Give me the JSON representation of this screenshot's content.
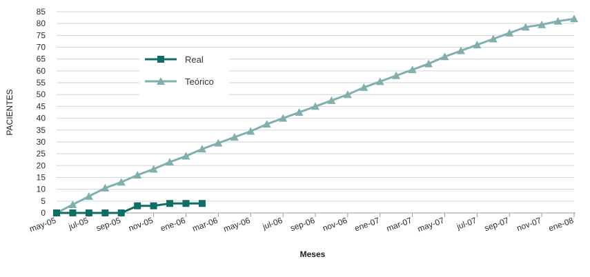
{
  "chart_data": {
    "type": "line",
    "xlabel": "Meses",
    "ylabel": "PACIENTES",
    "ylim": [
      0,
      85
    ],
    "yticks": [
      0,
      5,
      10,
      15,
      20,
      25,
      30,
      35,
      40,
      45,
      50,
      55,
      60,
      65,
      70,
      75,
      80,
      85
    ],
    "xtick_labels": [
      "may-05",
      "jul-05",
      "sep-05",
      "nov-05",
      "ene-06",
      "mar-06",
      "may-06",
      "jul-06",
      "sep-06",
      "nov-06",
      "ene-07",
      "mar-07",
      "may-07",
      "jul-07",
      "sep-07",
      "nov-07",
      "ene-08"
    ],
    "x_unit": "month index from may-05 (0) to ene-08 (32)",
    "grid": "horizontal",
    "legend_position": "upper-left",
    "series": [
      {
        "name": "Real",
        "color": "#0e6e66",
        "marker": "square",
        "x": [
          0,
          1,
          2,
          3,
          4,
          5,
          6,
          7,
          8,
          9
        ],
        "values": [
          0,
          0,
          0,
          0,
          0,
          3,
          3,
          4,
          4,
          4
        ]
      },
      {
        "name": "Teórico",
        "color": "#7fb0ae",
        "marker": "triangle",
        "x": [
          0,
          1,
          2,
          3,
          4,
          5,
          6,
          7,
          8,
          9,
          10,
          11,
          12,
          13,
          14,
          15,
          16,
          17,
          18,
          19,
          20,
          21,
          22,
          23,
          24,
          25,
          26,
          27,
          28,
          29,
          30,
          31,
          32
        ],
        "values": [
          0,
          3.5,
          7,
          10.5,
          13,
          16,
          18.5,
          21.5,
          24,
          27,
          29.5,
          32,
          34.5,
          37.5,
          40,
          42.5,
          45,
          47.5,
          50,
          53,
          55.5,
          58,
          60.5,
          63,
          66,
          68.5,
          71,
          73.5,
          76,
          78.5,
          79.5,
          81,
          82
        ]
      }
    ]
  }
}
